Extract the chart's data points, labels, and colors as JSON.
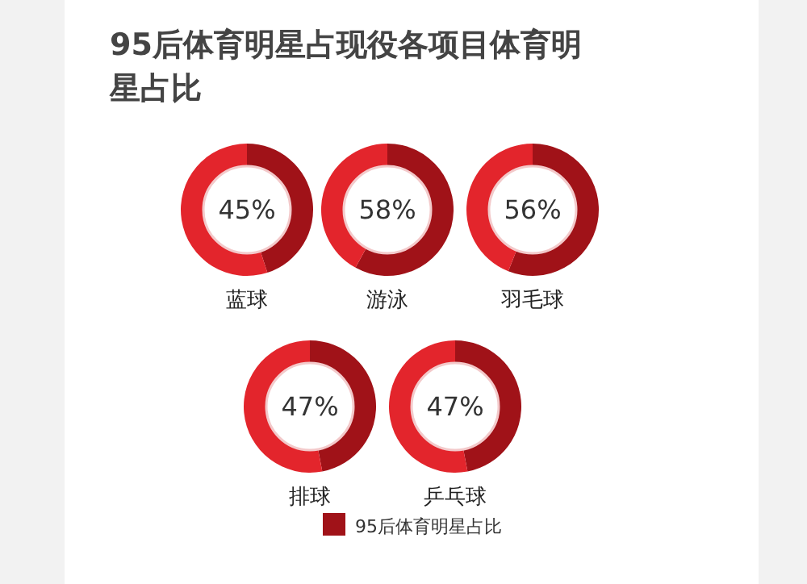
{
  "chart_data": [
    {
      "type": "donut",
      "title": "95后体育明星占现役各项目体育明星占比",
      "xlabel": "蓝球",
      "categories": [
        null,
        null
      ],
      "values": [
        45,
        55
      ],
      "colors": [
        "#a01218",
        "#e3252c"
      ],
      "annotations": [
        "45%"
      ]
    },
    {
      "type": "donut",
      "xlabel": "游泳",
      "categories": [
        null,
        null
      ],
      "values": [
        58,
        42
      ],
      "colors": [
        "#a01218",
        "#e3252c"
      ],
      "annotations": [
        "58%"
      ]
    },
    {
      "type": "donut",
      "xlabel": "羽毛球",
      "categories": [
        null,
        null
      ],
      "values": [
        56,
        44
      ],
      "colors": [
        "#a01218",
        "#e3252c"
      ],
      "annotations": [
        "56%"
      ]
    },
    {
      "type": "donut",
      "xlabel": "排球",
      "categories": [
        null,
        null
      ],
      "values": [
        47,
        53
      ],
      "colors": [
        "#a01218",
        "#e3252c"
      ],
      "annotations": [
        "47%"
      ]
    },
    {
      "type": "donut",
      "xlabel": "乒乓球",
      "categories": [
        "95后体育明星占比",
        null
      ],
      "values": [
        47,
        53
      ],
      "colors": [
        "#a01218",
        "#e3252c"
      ],
      "annotations": [
        "47%"
      ],
      "legend": "bottom"
    }
  ]
}
